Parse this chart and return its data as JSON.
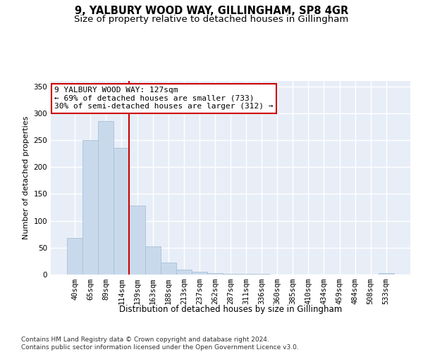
{
  "title1": "9, YALBURY WOOD WAY, GILLINGHAM, SP8 4GR",
  "title2": "Size of property relative to detached houses in Gillingham",
  "xlabel": "Distribution of detached houses by size in Gillingham",
  "ylabel": "Number of detached properties",
  "categories": [
    "40sqm",
    "65sqm",
    "89sqm",
    "114sqm",
    "139sqm",
    "163sqm",
    "188sqm",
    "213sqm",
    "237sqm",
    "262sqm",
    "287sqm",
    "311sqm",
    "336sqm",
    "360sqm",
    "385sqm",
    "410sqm",
    "434sqm",
    "459sqm",
    "484sqm",
    "508sqm",
    "533sqm"
  ],
  "values": [
    68,
    250,
    285,
    235,
    128,
    52,
    22,
    9,
    5,
    3,
    1,
    1,
    1,
    0,
    0,
    0,
    0,
    0,
    0,
    0,
    3
  ],
  "bar_color": "#c9d9ec",
  "bar_edge_color": "#a8c0d8",
  "vline_x": 3.5,
  "vline_color": "#cc0000",
  "annotation_text": "9 YALBURY WOOD WAY: 127sqm\n← 69% of detached houses are smaller (733)\n30% of semi-detached houses are larger (312) →",
  "annotation_box_facecolor": "#ffffff",
  "annotation_box_edgecolor": "#cc0000",
  "ylim": [
    0,
    360
  ],
  "yticks": [
    0,
    50,
    100,
    150,
    200,
    250,
    300,
    350
  ],
  "bg_color": "#e8eef7",
  "grid_color": "#ffffff",
  "footer": "Contains HM Land Registry data © Crown copyright and database right 2024.\nContains public sector information licensed under the Open Government Licence v3.0.",
  "title1_fontsize": 10.5,
  "title2_fontsize": 9.5,
  "xlabel_fontsize": 8.5,
  "ylabel_fontsize": 8,
  "tick_fontsize": 7.5,
  "annotation_fontsize": 8,
  "footer_fontsize": 6.5
}
